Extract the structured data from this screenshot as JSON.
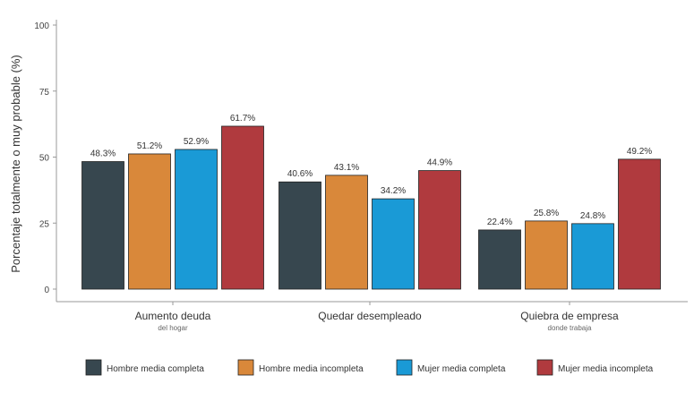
{
  "chart_data": {
    "type": "bar",
    "ylabel": "Porcentaje totalmente o muy probable (%)",
    "ylim": [
      0,
      100
    ],
    "yticks": [
      0,
      25,
      50,
      75,
      100
    ],
    "grid": false,
    "legend_position": "bottom",
    "categories": [
      {
        "label": "Aumento deuda",
        "sublabel": "del hogar"
      },
      {
        "label": "Quedar desempleado",
        "sublabel": ""
      },
      {
        "label": "Quiebra de empresa",
        "sublabel": "donde trabaja"
      }
    ],
    "series": [
      {
        "name": "Hombre media completa",
        "color": "#37474f",
        "values": [
          48.3,
          40.6,
          22.4
        ],
        "labels": [
          "48.3%",
          "40.6%",
          "22.4%"
        ]
      },
      {
        "name": "Hombre media incompleta",
        "color": "#d9883a",
        "values": [
          51.2,
          43.1,
          25.8
        ],
        "labels": [
          "51.2%",
          "43.1%",
          "25.8%"
        ]
      },
      {
        "name": "Mujer media completa",
        "color": "#1a9ad6",
        "values": [
          52.9,
          34.2,
          24.8
        ],
        "labels": [
          "52.9%",
          "34.2%",
          "24.8%"
        ]
      },
      {
        "name": "Mujer media incompleta",
        "color": "#b03a3e",
        "values": [
          61.7,
          44.9,
          49.2
        ],
        "labels": [
          "61.7%",
          "44.9%",
          "49.2%"
        ]
      }
    ]
  }
}
